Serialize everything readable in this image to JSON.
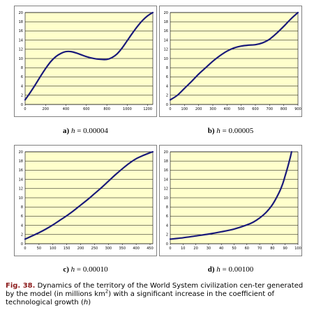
{
  "chart_data": [
    {
      "type": "line",
      "label_letter": "a)",
      "label_var": "h",
      "label_value": "= 0.00004",
      "xlim": [
        0,
        1250
      ],
      "xticks": [
        "0",
        "200",
        "400",
        "600",
        "800",
        "1000",
        "1200"
      ],
      "ylim": [
        0,
        20
      ],
      "yticks": [
        "0",
        "2",
        "4",
        "6",
        "8",
        "10",
        "12",
        "14",
        "16",
        "18",
        "20"
      ],
      "series": [
        {
          "x": [
            0,
            50,
            100,
            150,
            200,
            250,
            300,
            350,
            400,
            450,
            500,
            550,
            600,
            650,
            700,
            750,
            800,
            850,
            900,
            950,
            1000,
            1050,
            1100,
            1150,
            1200,
            1250
          ],
          "y": [
            1.0,
            2.6,
            4.3,
            6.1,
            7.8,
            9.3,
            10.4,
            11.1,
            11.5,
            11.5,
            11.2,
            10.8,
            10.4,
            10.1,
            9.9,
            9.8,
            9.8,
            10.2,
            11.0,
            12.3,
            13.9,
            15.5,
            17.0,
            18.3,
            19.3,
            20.0
          ]
        }
      ]
    },
    {
      "type": "line",
      "label_letter": "b)",
      "label_var": "h",
      "label_value": "= 0.00005",
      "xlim": [
        0,
        900
      ],
      "xticks": [
        "0",
        "100",
        "200",
        "300",
        "400",
        "500",
        "600",
        "700",
        "800",
        "900"
      ],
      "ylim": [
        0,
        20
      ],
      "yticks": [
        "0",
        "2",
        "4",
        "6",
        "8",
        "10",
        "12",
        "14",
        "16",
        "18",
        "20"
      ],
      "series": [
        {
          "x": [
            0,
            50,
            100,
            150,
            200,
            250,
            300,
            350,
            400,
            450,
            500,
            550,
            600,
            650,
            700,
            750,
            800,
            850,
            900
          ],
          "y": [
            1.0,
            2.0,
            3.5,
            5.0,
            6.6,
            8.0,
            9.4,
            10.6,
            11.6,
            12.3,
            12.7,
            12.9,
            13.0,
            13.4,
            14.2,
            15.5,
            17.0,
            18.6,
            20.0
          ]
        }
      ]
    },
    {
      "type": "line",
      "label_letter": "c)",
      "label_var": "h",
      "label_value": "= 0.00010",
      "xlim": [
        0,
        460
      ],
      "xticks": [
        "0",
        "50",
        "100",
        "150",
        "200",
        "250",
        "300",
        "350",
        "400",
        "450"
      ],
      "ylim": [
        0,
        20
      ],
      "yticks": [
        "0",
        "2",
        "4",
        "6",
        "8",
        "10",
        "12",
        "14",
        "16",
        "18",
        "20"
      ],
      "series": [
        {
          "x": [
            0,
            25,
            50,
            75,
            100,
            125,
            150,
            175,
            200,
            225,
            250,
            275,
            300,
            325,
            350,
            375,
            400,
            425,
            450,
            460
          ],
          "y": [
            1.0,
            1.7,
            2.4,
            3.2,
            4.1,
            5.1,
            6.1,
            7.2,
            8.4,
            9.6,
            10.9,
            12.2,
            13.6,
            15.0,
            16.3,
            17.5,
            18.5,
            19.2,
            19.8,
            20.0
          ]
        }
      ]
    },
    {
      "type": "line",
      "label_letter": "d)",
      "label_var": "h",
      "label_value": "= 0.00100",
      "xlim": [
        0,
        100
      ],
      "xticks": [
        "0",
        "10",
        "20",
        "30",
        "40",
        "50",
        "60",
        "70",
        "80",
        "90",
        "100"
      ],
      "ylim": [
        0,
        20
      ],
      "yticks": [
        "0",
        "2",
        "4",
        "6",
        "8",
        "10",
        "12",
        "14",
        "16",
        "18",
        "20"
      ],
      "series": [
        {
          "x": [
            0,
            10,
            20,
            30,
            40,
            50,
            60,
            65,
            70,
            75,
            80,
            85,
            88,
            90,
            92,
            94,
            95
          ],
          "y": [
            1.0,
            1.3,
            1.7,
            2.1,
            2.6,
            3.2,
            4.1,
            4.7,
            5.6,
            6.8,
            8.5,
            11.0,
            13.0,
            14.8,
            16.7,
            18.8,
            20.0
          ]
        }
      ]
    }
  ],
  "caption": {
    "lead": "Fig. 38.",
    "text_before_sup": " Dynamics of the territory of the World System civilization cen-ter generated by the model (in millions km",
    "sup": "2",
    "text_after_sup": ") with a significant increase in the coefficient of technological growth (",
    "var": "h",
    "text_end": ")"
  },
  "colors": {
    "plot_bg": "#FFFFCC",
    "line": "#1A1A7A",
    "grid": "#000000",
    "frame": "#808080",
    "caption_lead": "#8B1A1A"
  }
}
